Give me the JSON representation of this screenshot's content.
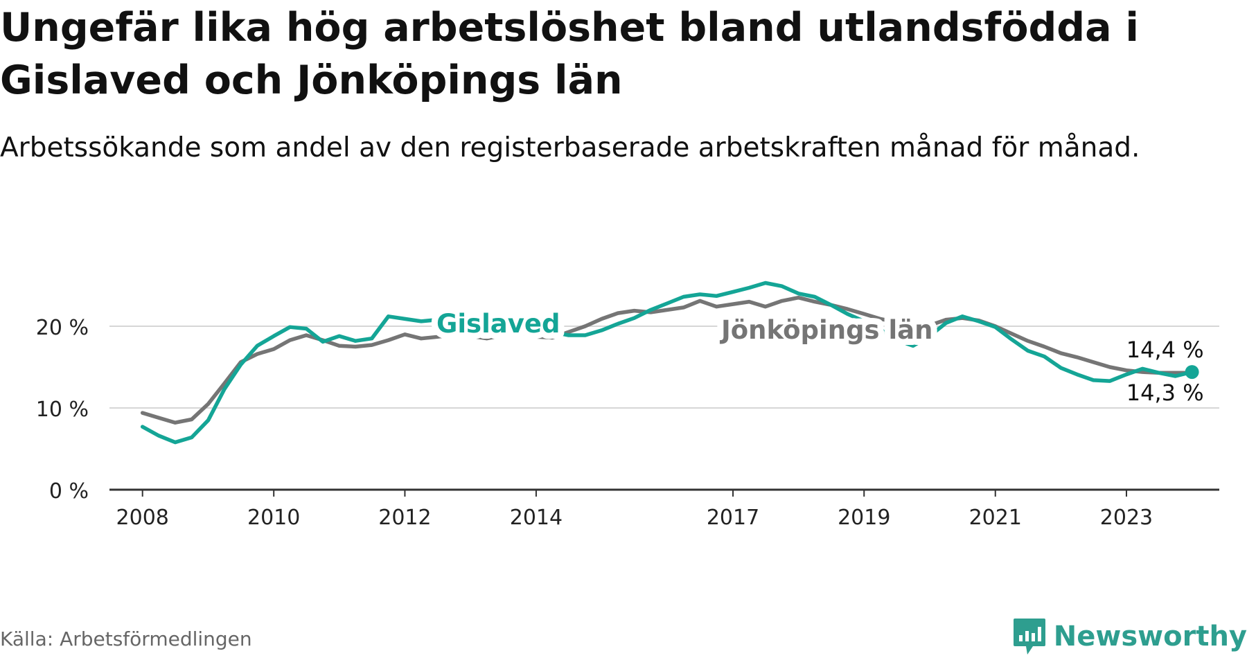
{
  "header": {
    "title": "Ungefär lika hög arbetslöshet bland utlandsfödda i Gislaved och Jönköpings län",
    "subtitle": "Arbetssökande som andel av den registerbaserade arbetskraften månad för månad."
  },
  "footer": {
    "source": "Källa: Arbetsförmedlingen",
    "brand": "Newsworthy",
    "brand_color": "#2e9e8f"
  },
  "chart_data": {
    "type": "line",
    "x_ticks": [
      "2008",
      "2010",
      "2012",
      "2014",
      "2017",
      "2019",
      "2021",
      "2023"
    ],
    "y_ticks": [
      "0 %",
      "10 %",
      "20 %"
    ],
    "ylim": [
      0,
      25
    ],
    "grid": true,
    "series": [
      {
        "name": "Jönköpings län",
        "color": "#757575",
        "end_label": "14,3 %",
        "points": [
          [
            "2008-01",
            9.4
          ],
          [
            "2008-04",
            8.8
          ],
          [
            "2008-07",
            8.2
          ],
          [
            "2008-10",
            8.6
          ],
          [
            "2009-01",
            10.5
          ],
          [
            "2009-04",
            13.0
          ],
          [
            "2009-07",
            15.6
          ],
          [
            "2009-10",
            16.6
          ],
          [
            "2010-01",
            17.2
          ],
          [
            "2010-04",
            18.3
          ],
          [
            "2010-07",
            18.9
          ],
          [
            "2010-10",
            18.3
          ],
          [
            "2011-01",
            17.6
          ],
          [
            "2011-04",
            17.5
          ],
          [
            "2011-07",
            17.7
          ],
          [
            "2011-10",
            18.3
          ],
          [
            "2012-01",
            19.0
          ],
          [
            "2012-04",
            18.5
          ],
          [
            "2012-07",
            18.7
          ],
          [
            "2012-10",
            19.0
          ],
          [
            "2013-01",
            18.8
          ],
          [
            "2013-04",
            18.5
          ],
          [
            "2013-07",
            18.9
          ],
          [
            "2013-10",
            19.2
          ],
          [
            "2014-01",
            18.7
          ],
          [
            "2014-04",
            18.6
          ],
          [
            "2014-07",
            19.3
          ],
          [
            "2014-10",
            20.0
          ],
          [
            "2015-01",
            20.9
          ],
          [
            "2015-04",
            21.6
          ],
          [
            "2015-07",
            21.9
          ],
          [
            "2015-10",
            21.7
          ],
          [
            "2016-01",
            22.0
          ],
          [
            "2016-04",
            22.3
          ],
          [
            "2016-07",
            23.1
          ],
          [
            "2016-10",
            22.4
          ],
          [
            "2017-01",
            22.7
          ],
          [
            "2017-04",
            23.0
          ],
          [
            "2017-07",
            22.4
          ],
          [
            "2017-10",
            23.1
          ],
          [
            "2018-01",
            23.5
          ],
          [
            "2018-04",
            23.0
          ],
          [
            "2018-07",
            22.6
          ],
          [
            "2018-10",
            22.1
          ],
          [
            "2019-01",
            21.5
          ],
          [
            "2019-04",
            20.9
          ],
          [
            "2019-07",
            20.5
          ],
          [
            "2019-10",
            20.2
          ],
          [
            "2020-01",
            20.1
          ],
          [
            "2020-04",
            20.8
          ],
          [
            "2020-07",
            21.0
          ],
          [
            "2020-10",
            20.7
          ],
          [
            "2021-01",
            20.0
          ],
          [
            "2021-04",
            19.1
          ],
          [
            "2021-07",
            18.2
          ],
          [
            "2021-10",
            17.5
          ],
          [
            "2022-01",
            16.7
          ],
          [
            "2022-04",
            16.2
          ],
          [
            "2022-07",
            15.6
          ],
          [
            "2022-10",
            15.0
          ],
          [
            "2023-01",
            14.6
          ],
          [
            "2023-04",
            14.4
          ],
          [
            "2023-07",
            14.3
          ],
          [
            "2023-10",
            14.3
          ],
          [
            "2024-01",
            14.3
          ]
        ]
      },
      {
        "name": "Gislaved",
        "color": "#14a596",
        "end_label": "14,4 %",
        "points": [
          [
            "2008-01",
            7.7
          ],
          [
            "2008-04",
            6.6
          ],
          [
            "2008-07",
            5.8
          ],
          [
            "2008-10",
            6.4
          ],
          [
            "2009-01",
            8.5
          ],
          [
            "2009-04",
            12.3
          ],
          [
            "2009-07",
            15.3
          ],
          [
            "2009-10",
            17.6
          ],
          [
            "2010-01",
            18.8
          ],
          [
            "2010-04",
            19.9
          ],
          [
            "2010-07",
            19.7
          ],
          [
            "2010-10",
            18.1
          ],
          [
            "2011-01",
            18.8
          ],
          [
            "2011-04",
            18.2
          ],
          [
            "2011-07",
            18.5
          ],
          [
            "2011-10",
            21.2
          ],
          [
            "2012-01",
            20.9
          ],
          [
            "2012-04",
            20.6
          ],
          [
            "2012-07",
            20.8
          ],
          [
            "2012-10",
            20.4
          ],
          [
            "2013-01",
            20.5
          ],
          [
            "2013-04",
            20.1
          ],
          [
            "2013-07",
            20.3
          ],
          [
            "2013-10",
            20.0
          ],
          [
            "2014-01",
            19.8
          ],
          [
            "2014-04",
            19.3
          ],
          [
            "2014-07",
            18.9
          ],
          [
            "2014-10",
            18.9
          ],
          [
            "2015-01",
            19.5
          ],
          [
            "2015-04",
            20.3
          ],
          [
            "2015-07",
            21.0
          ],
          [
            "2015-10",
            22.0
          ],
          [
            "2016-01",
            22.8
          ],
          [
            "2016-04",
            23.6
          ],
          [
            "2016-07",
            23.9
          ],
          [
            "2016-10",
            23.7
          ],
          [
            "2017-01",
            24.2
          ],
          [
            "2017-04",
            24.7
          ],
          [
            "2017-07",
            25.3
          ],
          [
            "2017-10",
            24.9
          ],
          [
            "2018-01",
            24.0
          ],
          [
            "2018-04",
            23.6
          ],
          [
            "2018-07",
            22.6
          ],
          [
            "2018-10",
            21.5
          ],
          [
            "2019-01",
            20.6
          ],
          [
            "2019-04",
            19.6
          ],
          [
            "2019-07",
            18.3
          ],
          [
            "2019-10",
            17.6
          ],
          [
            "2020-01",
            18.8
          ],
          [
            "2020-04",
            20.4
          ],
          [
            "2020-07",
            21.2
          ],
          [
            "2020-10",
            20.6
          ],
          [
            "2021-01",
            19.9
          ],
          [
            "2021-04",
            18.4
          ],
          [
            "2021-07",
            17.0
          ],
          [
            "2021-10",
            16.3
          ],
          [
            "2022-01",
            14.9
          ],
          [
            "2022-04",
            14.1
          ],
          [
            "2022-07",
            13.4
          ],
          [
            "2022-10",
            13.3
          ],
          [
            "2023-01",
            14.1
          ],
          [
            "2023-04",
            14.8
          ],
          [
            "2023-07",
            14.3
          ],
          [
            "2023-10",
            13.9
          ],
          [
            "2024-01",
            14.4
          ]
        ]
      }
    ]
  }
}
